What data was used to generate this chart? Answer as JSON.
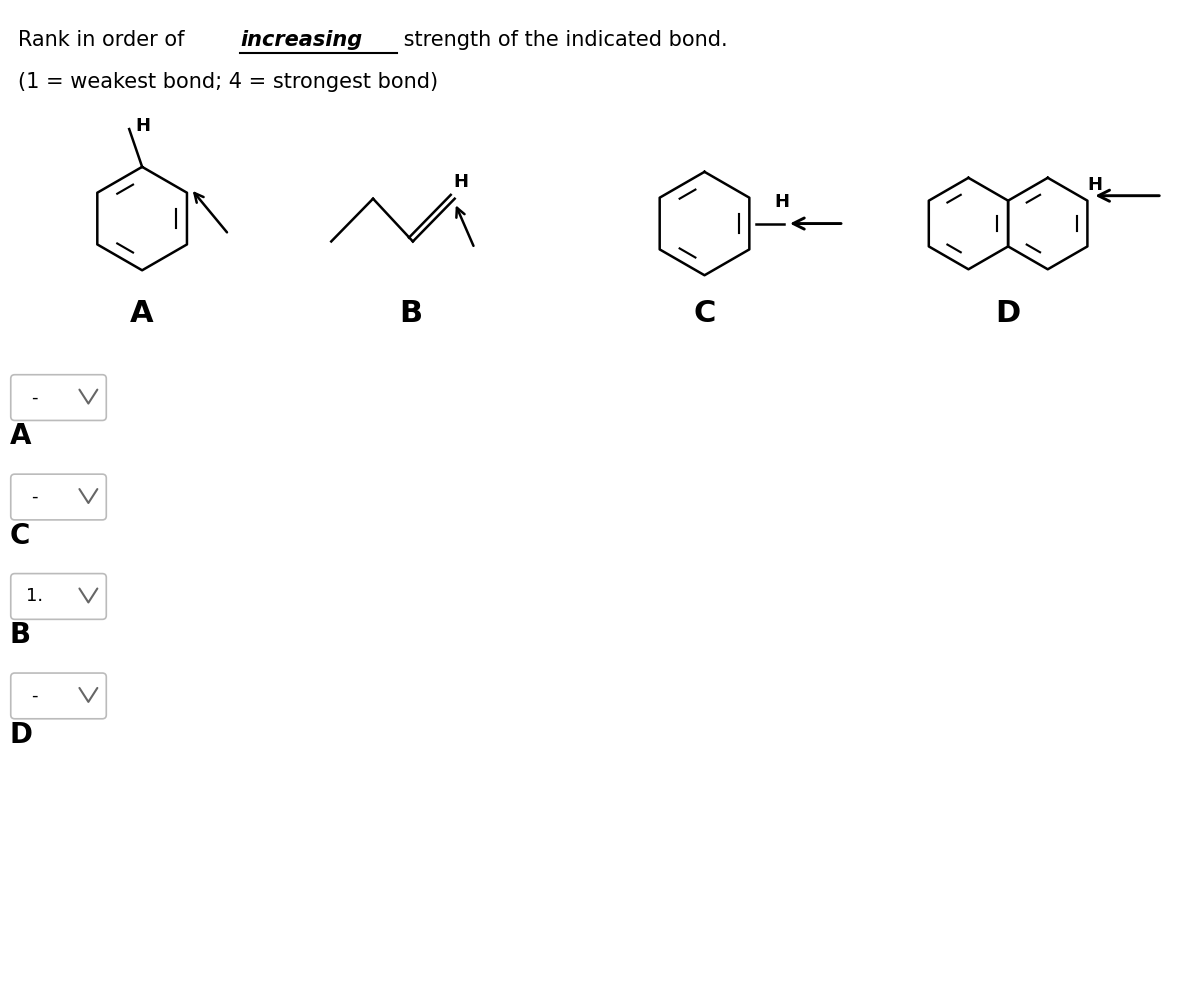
{
  "title_part1": "Rank in order of ",
  "title_increasing": "increasing",
  "title_part2": " strength of the indicated bond.",
  "title_line2": "(1 = weakest bond; 4 = strongest bond)",
  "labels": [
    "A",
    "B",
    "C",
    "D"
  ],
  "dropdown_labels": [
    "A",
    "C",
    "B",
    "D"
  ],
  "dropdown_values": [
    "-",
    "-",
    "1.",
    "-"
  ],
  "background_color": "#ffffff",
  "text_color": "#000000",
  "line_color": "#000000",
  "font_size_title": 15,
  "font_size_label": 22,
  "font_size_dropdown": 13
}
